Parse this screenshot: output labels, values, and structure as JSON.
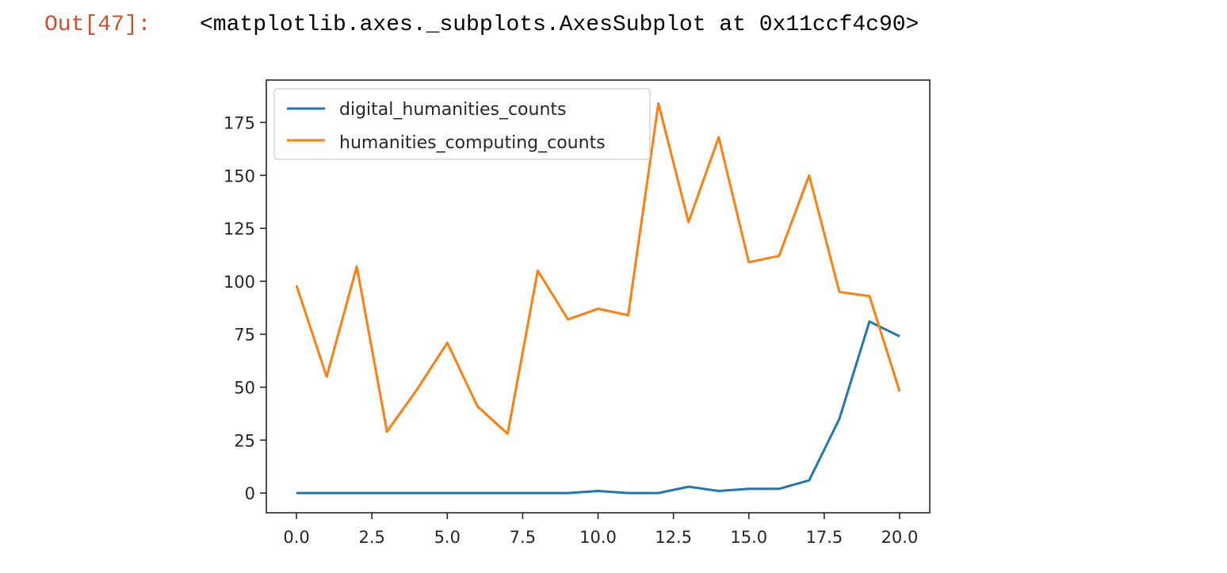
{
  "output": {
    "prompt": "Out[47]:",
    "text": "<matplotlib.axes._subplots.AxesSubplot at 0x11ccf4c90>"
  },
  "chart_data": {
    "type": "line",
    "title": "",
    "xlabel": "",
    "ylabel": "",
    "xlim": [
      -1.0,
      21.0
    ],
    "ylim": [
      -9.3,
      195.0
    ],
    "x": [
      0,
      1,
      2,
      3,
      4,
      5,
      6,
      7,
      8,
      9,
      10,
      11,
      12,
      13,
      14,
      15,
      16,
      17,
      18,
      19,
      20
    ],
    "x_ticks": [
      0.0,
      2.5,
      5.0,
      7.5,
      10.0,
      12.5,
      15.0,
      17.5,
      20.0
    ],
    "x_tick_labels": [
      "0.0",
      "2.5",
      "5.0",
      "7.5",
      "10.0",
      "12.5",
      "15.0",
      "17.5",
      "20.0"
    ],
    "y_ticks": [
      0,
      25,
      50,
      75,
      100,
      125,
      150,
      175
    ],
    "y_tick_labels": [
      "0",
      "25",
      "50",
      "75",
      "100",
      "125",
      "150",
      "175"
    ],
    "grid": false,
    "legend_position": "top-left",
    "series": [
      {
        "name": "digital_humanities_counts",
        "color": "#1f77b4",
        "values": [
          0,
          0,
          0,
          0,
          0,
          0,
          0,
          0,
          0,
          0,
          1,
          0,
          0,
          3,
          1,
          2,
          2,
          6,
          35,
          81,
          74
        ]
      },
      {
        "name": "humanities_computing_counts",
        "color": "#ff7f0e",
        "values": [
          98,
          55,
          107,
          29,
          49,
          71,
          41,
          28,
          105,
          82,
          87,
          84,
          184,
          128,
          168,
          109,
          112,
          150,
          95,
          93,
          48
        ]
      }
    ]
  }
}
